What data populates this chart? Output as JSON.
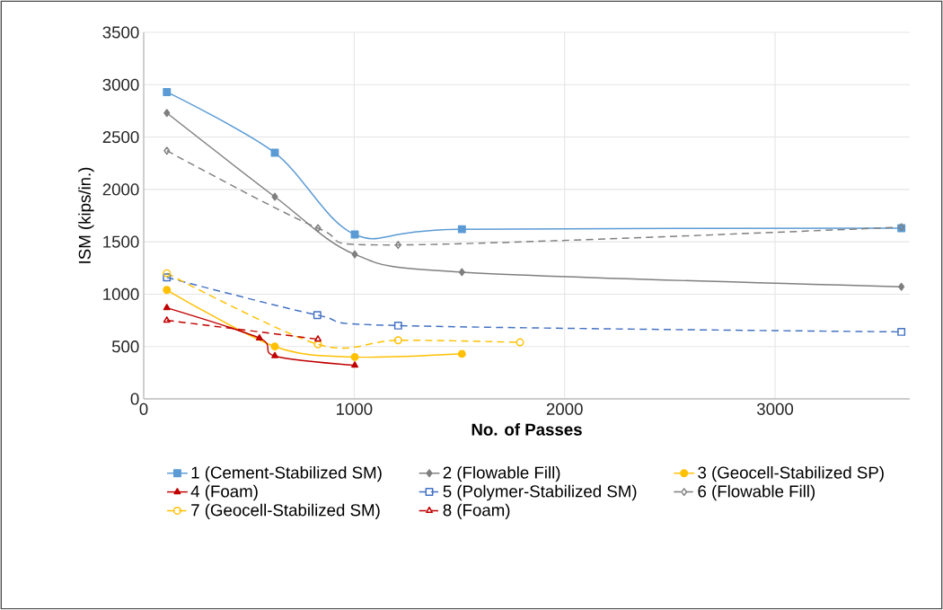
{
  "chart_data": {
    "type": "line",
    "xlabel": "No. of Passes",
    "ylabel": "ISM (kips/in.)",
    "xlim": [
      0,
      3640
    ],
    "xticks": [
      0,
      1000,
      2000,
      3000
    ],
    "ylim": [
      0,
      3500
    ],
    "yticks": [
      0,
      500,
      1000,
      1500,
      2000,
      2500,
      3000,
      3500
    ],
    "grid": true,
    "legend": "bottom",
    "series": [
      {
        "name": "1 (Cement-Stabilized SM)",
        "color": "#5b9bd5",
        "marker": "square",
        "line_style": "solid",
        "x": [
          110,
          623,
          1003,
          1512,
          3600
        ],
        "values": [
          2930,
          2350,
          1570,
          1620,
          1630
        ]
      },
      {
        "name": "2 (Flowable Fill)",
        "color": "#7f7f7f",
        "marker": "diamond",
        "line_style": "solid",
        "x": [
          110,
          623,
          1003,
          1512,
          3600
        ],
        "values": [
          2730,
          1930,
          1380,
          1210,
          1070
        ]
      },
      {
        "name": "3 (Geocell-Stabilized SP)",
        "color": "#ffc000",
        "marker": "circle",
        "line_style": "solid",
        "x": [
          110,
          623,
          1003,
          1512
        ],
        "values": [
          1040,
          500,
          400,
          430
        ]
      },
      {
        "name": "4 (Foam)",
        "color": "#c00000",
        "marker": "triangle",
        "line_style": "solid",
        "x": [
          110,
          550,
          623,
          1003
        ],
        "values": [
          870,
          580,
          410,
          320
        ]
      },
      {
        "name": "5 (Polymer-Stabilized SM)",
        "color": "#4472c4",
        "marker": "square",
        "line_style": "dashed",
        "x": [
          110,
          825,
          1209,
          3600
        ],
        "values": [
          1160,
          800,
          700,
          640
        ]
      },
      {
        "name": "6 (Flowable Fill)",
        "color": "#7f7f7f",
        "marker": "diamond",
        "line_style": "dashed",
        "x": [
          110,
          828,
          1209,
          3600
        ],
        "values": [
          2370,
          1630,
          1470,
          1640
        ]
      },
      {
        "name": "7 (Geocell-Stabilized SM)",
        "color": "#ffc000",
        "marker": "circle",
        "line_style": "dashed",
        "x": [
          110,
          828,
          1209,
          1788
        ],
        "values": [
          1200,
          520,
          560,
          540
        ]
      },
      {
        "name": "8 (Foam)",
        "color": "#c00000",
        "marker": "triangle",
        "line_style": "dashed",
        "x": [
          110,
          828
        ],
        "values": [
          750,
          570
        ]
      }
    ]
  }
}
